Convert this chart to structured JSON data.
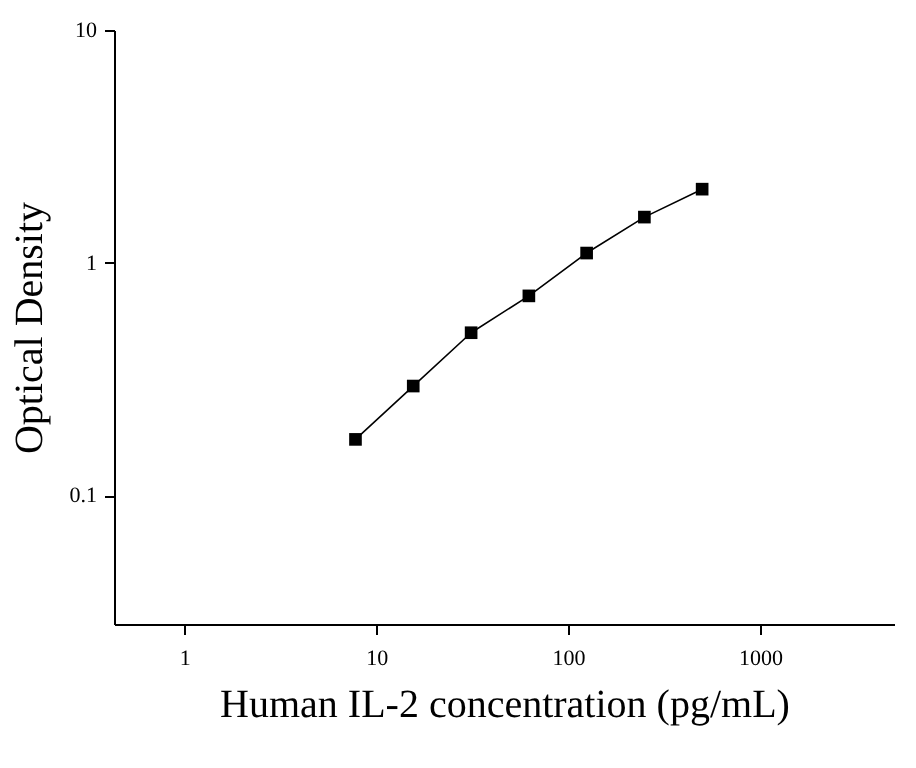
{
  "chart_data": {
    "type": "line",
    "xlabel": "Human IL-2 concentration (pg/mL)",
    "ylabel": "Optical Density",
    "x": [
      7.8,
      15.6,
      31.25,
      62.5,
      125,
      250,
      500
    ],
    "series": [
      {
        "color": "#000000",
        "values": [
          0.174,
          0.295,
          0.5,
          0.72,
          1.1,
          1.57,
          2.07
        ]
      }
    ],
    "log": "xy",
    "xlim": [
      0.43,
      5000
    ],
    "ylim": [
      0.028,
      10
    ],
    "xticks": [
      1,
      10,
      100,
      1000
    ],
    "yticks": [
      0.1,
      1,
      10
    ],
    "marker": "square",
    "line_style": "solid",
    "grid": false,
    "legend": false
  }
}
